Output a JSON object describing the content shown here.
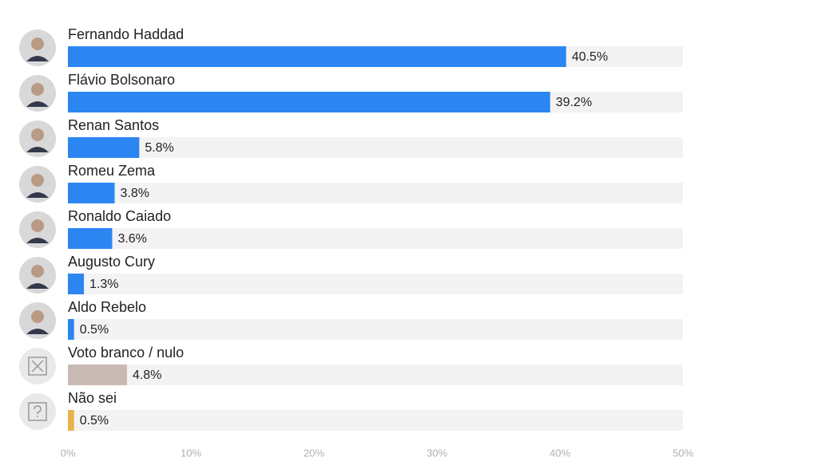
{
  "chart_data": {
    "type": "bar",
    "orientation": "horizontal",
    "categories": [
      "Fernando Haddad",
      "Flávio Bolsonaro",
      "Renan Santos",
      "Romeu Zema",
      "Ronaldo Caiado",
      "Augusto Cury",
      "Aldo Rebelo",
      "Voto branco / nulo",
      "Não sei"
    ],
    "values": [
      40.5,
      39.2,
      5.8,
      3.8,
      3.6,
      1.3,
      0.5,
      4.8,
      0.5
    ],
    "value_labels": [
      "40.5%",
      "39.2%",
      "5.8%",
      "3.8%",
      "3.6%",
      "1.3%",
      "0.5%",
      "4.8%",
      "0.5%"
    ],
    "colors": [
      "#2b86f2",
      "#2b86f2",
      "#2b86f2",
      "#2b86f2",
      "#2b86f2",
      "#2b86f2",
      "#2b86f2",
      "#c8bab2",
      "#e9b24a"
    ],
    "xlim": [
      0,
      50
    ],
    "xticks": [
      {
        "value": 0,
        "label": "0%"
      },
      {
        "value": 10,
        "label": "10%"
      },
      {
        "value": 20,
        "label": "20%"
      },
      {
        "value": 30,
        "label": "30%"
      },
      {
        "value": 40,
        "label": "40%"
      },
      {
        "value": 50,
        "label": "50%"
      }
    ]
  }
}
